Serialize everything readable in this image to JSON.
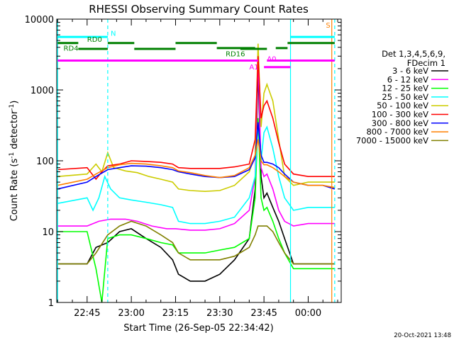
{
  "chart_data": {
    "type": "line",
    "title": "RHESSI Observing Summary Count Rates",
    "xlabel": "Start Time (26-Sep-05 22:34:42)",
    "ylabel_main": "Count Rate (s",
    "ylabel_sup1": "-1",
    "ylabel_mid": " detector",
    "ylabel_sup2": "-1",
    "ylabel_end": ")",
    "y_scale": "log",
    "ylim": [
      1,
      10000
    ],
    "x_range_minutes": [
      "22:34:42",
      "00:11"
    ],
    "x_ticks": [
      "22:45",
      "23:00",
      "23:15",
      "23:30",
      "23:45",
      "00:00"
    ],
    "y_ticks": [
      "1",
      "10",
      "100",
      "1000",
      "10000"
    ],
    "legend_title": [
      "Det 1,3,4,5,6,9,",
      "FDecim 1"
    ],
    "series": [
      {
        "name": "3 - 6 keV",
        "color": "#000000",
        "points": [
          [
            "22:35",
            3.5
          ],
          [
            "22:45",
            3.5
          ],
          [
            "22:48",
            6
          ],
          [
            "22:52",
            7
          ],
          [
            "22:56",
            10
          ],
          [
            "23:00",
            11
          ],
          [
            "23:05",
            8
          ],
          [
            "23:10",
            6
          ],
          [
            "23:14",
            4
          ],
          [
            "23:16",
            2.5
          ],
          [
            "23:20",
            2
          ],
          [
            "23:25",
            2
          ],
          [
            "23:30",
            2.5
          ],
          [
            "23:35",
            4
          ],
          [
            "23:40",
            8
          ],
          [
            "23:42",
            40
          ],
          [
            "23:43",
            2000
          ],
          [
            "23:44",
            60
          ],
          [
            "23:45",
            30
          ],
          [
            "23:46",
            35
          ],
          [
            "23:48",
            22
          ],
          [
            "23:50",
            14
          ],
          [
            "23:52",
            8
          ],
          [
            "23:55",
            3.5
          ],
          [
            "00:00",
            3.5
          ],
          [
            "00:05",
            3.5
          ],
          [
            "00:09",
            3.5
          ]
        ]
      },
      {
        "name": "6 - 12 keV",
        "color": "#ff00ff",
        "points": [
          [
            "22:35",
            12
          ],
          [
            "22:45",
            12
          ],
          [
            "22:49",
            14
          ],
          [
            "22:53",
            15
          ],
          [
            "22:58",
            15
          ],
          [
            "23:02",
            14
          ],
          [
            "23:07",
            12
          ],
          [
            "23:12",
            11
          ],
          [
            "23:15",
            11
          ],
          [
            "23:20",
            10.5
          ],
          [
            "23:25",
            10.5
          ],
          [
            "23:30",
            11
          ],
          [
            "23:35",
            13
          ],
          [
            "23:40",
            20
          ],
          [
            "23:42",
            60
          ],
          [
            "23:43",
            3000
          ],
          [
            "23:44",
            80
          ],
          [
            "23:45",
            60
          ],
          [
            "23:46",
            65
          ],
          [
            "23:48",
            40
          ],
          [
            "23:50",
            20
          ],
          [
            "23:52",
            14
          ],
          [
            "23:55",
            12
          ],
          [
            "00:00",
            13
          ],
          [
            "00:05",
            13
          ],
          [
            "00:09",
            13
          ]
        ]
      },
      {
        "name": "12 - 25 keV",
        "color": "#00ff00",
        "points": [
          [
            "22:35",
            10
          ],
          [
            "22:45",
            10
          ],
          [
            "22:48",
            3
          ],
          [
            "22:50",
            1
          ],
          [
            "22:52",
            8
          ],
          [
            "22:56",
            9
          ],
          [
            "23:00",
            9
          ],
          [
            "23:05",
            8
          ],
          [
            "23:10",
            7
          ],
          [
            "23:14",
            6.5
          ],
          [
            "23:16",
            5
          ],
          [
            "23:20",
            5
          ],
          [
            "23:25",
            5
          ],
          [
            "23:30",
            5.5
          ],
          [
            "23:35",
            6
          ],
          [
            "23:40",
            8
          ],
          [
            "23:42",
            30
          ],
          [
            "23:43",
            400
          ],
          [
            "23:44",
            30
          ],
          [
            "23:45",
            20
          ],
          [
            "23:46",
            22
          ],
          [
            "23:48",
            14
          ],
          [
            "23:50",
            8
          ],
          [
            "23:52",
            5
          ],
          [
            "23:55",
            3
          ],
          [
            "00:00",
            3
          ],
          [
            "00:05",
            3
          ],
          [
            "00:09",
            3
          ]
        ]
      },
      {
        "name": "25 - 50 keV",
        "color": "#00ffff",
        "points": [
          [
            "22:35",
            25
          ],
          [
            "22:45",
            30
          ],
          [
            "22:47",
            20
          ],
          [
            "22:49",
            30
          ],
          [
            "22:51",
            60
          ],
          [
            "22:53",
            40
          ],
          [
            "22:56",
            30
          ],
          [
            "23:00",
            28
          ],
          [
            "23:05",
            26
          ],
          [
            "23:10",
            24
          ],
          [
            "23:14",
            22
          ],
          [
            "23:16",
            14
          ],
          [
            "23:20",
            13
          ],
          [
            "23:25",
            13
          ],
          [
            "23:30",
            14
          ],
          [
            "23:35",
            16
          ],
          [
            "23:40",
            30
          ],
          [
            "23:42",
            60
          ],
          [
            "23:43",
            350
          ],
          [
            "23:44",
            100
          ],
          [
            "23:45",
            250
          ],
          [
            "23:46",
            300
          ],
          [
            "23:48",
            150
          ],
          [
            "23:50",
            60
          ],
          [
            "23:52",
            30
          ],
          [
            "23:55",
            20
          ],
          [
            "00:00",
            22
          ],
          [
            "00:05",
            22
          ],
          [
            "00:09",
            22
          ]
        ]
      },
      {
        "name": "50 - 100 keV",
        "color": "#cccc00",
        "points": [
          [
            "22:35",
            60
          ],
          [
            "22:45",
            65
          ],
          [
            "22:48",
            90
          ],
          [
            "22:50",
            70
          ],
          [
            "22:52",
            130
          ],
          [
            "22:54",
            80
          ],
          [
            "22:58",
            72
          ],
          [
            "23:02",
            68
          ],
          [
            "23:06",
            60
          ],
          [
            "23:10",
            55
          ],
          [
            "23:14",
            50
          ],
          [
            "23:16",
            40
          ],
          [
            "23:20",
            38
          ],
          [
            "23:25",
            37
          ],
          [
            "23:30",
            38
          ],
          [
            "23:35",
            45
          ],
          [
            "23:40",
            70
          ],
          [
            "23:42",
            120
          ],
          [
            "23:43",
            4500
          ],
          [
            "23:44",
            300
          ],
          [
            "23:45",
            900
          ],
          [
            "23:46",
            1200
          ],
          [
            "23:48",
            700
          ],
          [
            "23:50",
            200
          ],
          [
            "23:52",
            60
          ],
          [
            "23:55",
            45
          ],
          [
            "00:00",
            50
          ],
          [
            "00:05",
            50
          ],
          [
            "00:09",
            50
          ]
        ]
      },
      {
        "name": "100 - 300 keV",
        "color": "#ff0000",
        "points": [
          [
            "22:35",
            75
          ],
          [
            "22:45",
            80
          ],
          [
            "22:48",
            55
          ],
          [
            "22:50",
            70
          ],
          [
            "22:52",
            85
          ],
          [
            "22:56",
            90
          ],
          [
            "23:00",
            100
          ],
          [
            "23:05",
            98
          ],
          [
            "23:10",
            95
          ],
          [
            "23:14",
            90
          ],
          [
            "23:16",
            80
          ],
          [
            "23:20",
            78
          ],
          [
            "23:25",
            78
          ],
          [
            "23:30",
            78
          ],
          [
            "23:35",
            82
          ],
          [
            "23:40",
            90
          ],
          [
            "23:42",
            200
          ],
          [
            "23:43",
            3000
          ],
          [
            "23:44",
            400
          ],
          [
            "23:45",
            600
          ],
          [
            "23:46",
            700
          ],
          [
            "23:48",
            400
          ],
          [
            "23:50",
            180
          ],
          [
            "23:52",
            90
          ],
          [
            "23:55",
            65
          ],
          [
            "00:00",
            60
          ],
          [
            "00:05",
            60
          ],
          [
            "00:09",
            60
          ]
        ]
      },
      {
        "name": "300 - 800 keV",
        "color": "#0000ff",
        "points": [
          [
            "22:35",
            40
          ],
          [
            "22:45",
            50
          ],
          [
            "22:48",
            60
          ],
          [
            "22:52",
            75
          ],
          [
            "22:56",
            80
          ],
          [
            "23:00",
            85
          ],
          [
            "23:05",
            84
          ],
          [
            "23:10",
            80
          ],
          [
            "23:14",
            75
          ],
          [
            "23:16",
            70
          ],
          [
            "23:20",
            65
          ],
          [
            "23:25",
            60
          ],
          [
            "23:30",
            58
          ],
          [
            "23:35",
            60
          ],
          [
            "23:40",
            75
          ],
          [
            "23:42",
            110
          ],
          [
            "23:43",
            350
          ],
          [
            "23:44",
            120
          ],
          [
            "23:45",
            95
          ],
          [
            "23:46",
            95
          ],
          [
            "23:48",
            90
          ],
          [
            "23:50",
            80
          ],
          [
            "23:52",
            65
          ],
          [
            "23:55",
            50
          ],
          [
            "00:00",
            45
          ],
          [
            "00:05",
            45
          ],
          [
            "00:09",
            40
          ]
        ]
      },
      {
        "name": "800 - 7000 keV",
        "color": "#ff8000",
        "points": [
          [
            "22:35",
            45
          ],
          [
            "22:45",
            55
          ],
          [
            "22:48",
            65
          ],
          [
            "22:52",
            80
          ],
          [
            "22:56",
            88
          ],
          [
            "23:00",
            92
          ],
          [
            "23:05",
            90
          ],
          [
            "23:10",
            85
          ],
          [
            "23:14",
            80
          ],
          [
            "23:16",
            72
          ],
          [
            "23:20",
            68
          ],
          [
            "23:25",
            62
          ],
          [
            "23:30",
            58
          ],
          [
            "23:35",
            62
          ],
          [
            "23:40",
            80
          ],
          [
            "23:42",
            120
          ],
          [
            "23:43",
            200
          ],
          [
            "23:44",
            100
          ],
          [
            "23:45",
            88
          ],
          [
            "23:46",
            88
          ],
          [
            "23:48",
            80
          ],
          [
            "23:50",
            70
          ],
          [
            "23:52",
            60
          ],
          [
            "23:55",
            50
          ],
          [
            "00:00",
            45
          ],
          [
            "00:05",
            45
          ],
          [
            "00:09",
            42
          ]
        ]
      },
      {
        "name": "7000 - 15000 keV",
        "color": "#808000",
        "points": [
          [
            "22:35",
            3.5
          ],
          [
            "22:45",
            3.5
          ],
          [
            "22:48",
            5
          ],
          [
            "22:52",
            9
          ],
          [
            "22:56",
            12
          ],
          [
            "23:00",
            14
          ],
          [
            "23:05",
            12
          ],
          [
            "23:10",
            9
          ],
          [
            "23:14",
            7
          ],
          [
            "23:16",
            5
          ],
          [
            "23:20",
            4
          ],
          [
            "23:25",
            4
          ],
          [
            "23:30",
            4
          ],
          [
            "23:35",
            4.5
          ],
          [
            "23:40",
            6
          ],
          [
            "23:42",
            9
          ],
          [
            "23:43",
            12
          ],
          [
            "23:44",
            12
          ],
          [
            "23:45",
            12
          ],
          [
            "23:46",
            12
          ],
          [
            "23:48",
            10
          ],
          [
            "23:50",
            7
          ],
          [
            "23:52",
            5
          ],
          [
            "23:55",
            3.5
          ],
          [
            "00:00",
            3.5
          ],
          [
            "00:05",
            3.5
          ],
          [
            "00:09",
            3.5
          ]
        ]
      }
    ],
    "vertical_lines": [
      {
        "time": "22:35",
        "color": "#00ffff",
        "style": "solid"
      },
      {
        "time": "22:52",
        "color": "#00ffff",
        "style": "dashed"
      },
      {
        "time": "23:54",
        "color": "#00ffff",
        "style": "solid"
      },
      {
        "time": "00:08",
        "color": "#ff8000",
        "style": "solid"
      },
      {
        "time": "00:09",
        "color": "#00ffff",
        "style": "dashed"
      }
    ],
    "state_bars": [
      {
        "label": "N",
        "color": "#00ffff",
        "y": 5600,
        "segments": [
          [
            "22:35",
            "22:52"
          ]
        ],
        "label_time": "22:53",
        "label_y": 5800
      },
      {
        "label": "",
        "color": "#00ffff",
        "y": 5600,
        "segments": [
          [
            "23:54",
            "00:09"
          ]
        ]
      },
      {
        "label": "S",
        "color": "#ff8000",
        "y": 8000,
        "segments": [],
        "label_time": "00:06",
        "label_y": 7600
      },
      {
        "label": "RD0",
        "color": "#008000",
        "y": 4600,
        "segments": [
          [
            "22:35",
            "22:42"
          ],
          [
            "22:52",
            "23:01"
          ],
          [
            "23:15",
            "23:29"
          ],
          [
            "23:53",
            "00:09"
          ]
        ],
        "label_time": "22:45",
        "label_y": 4800
      },
      {
        "label": "RD4",
        "color": "#008000",
        "y": 3800,
        "segments": [
          [
            "22:42",
            "22:52"
          ],
          [
            "23:01",
            "23:15"
          ],
          [
            "23:37",
            "23:46"
          ]
        ],
        "label_time": "22:37",
        "label_y": 3600
      },
      {
        "label": "RD16",
        "color": "#008000",
        "y": 3900,
        "segments": [
          [
            "23:29",
            "23:42"
          ],
          [
            "23:49",
            "23:53"
          ]
        ],
        "label_time": "23:32",
        "label_y": 3000
      },
      {
        "label": "A0",
        "color": "#ff00ff",
        "y": 2600,
        "segments": [
          [
            "22:35",
            "23:43"
          ],
          [
            "23:46",
            "00:09"
          ]
        ],
        "label_time": "23:46",
        "label_y": 2550
      },
      {
        "label": "A1",
        "color": "#ff00ff",
        "y": 2100,
        "segments": [
          [
            "23:45",
            "23:54"
          ]
        ],
        "label_time": "23:40",
        "label_y": 1950
      }
    ],
    "legend_placement": "right",
    "timestamp": "20-Oct-2021 13:48"
  }
}
